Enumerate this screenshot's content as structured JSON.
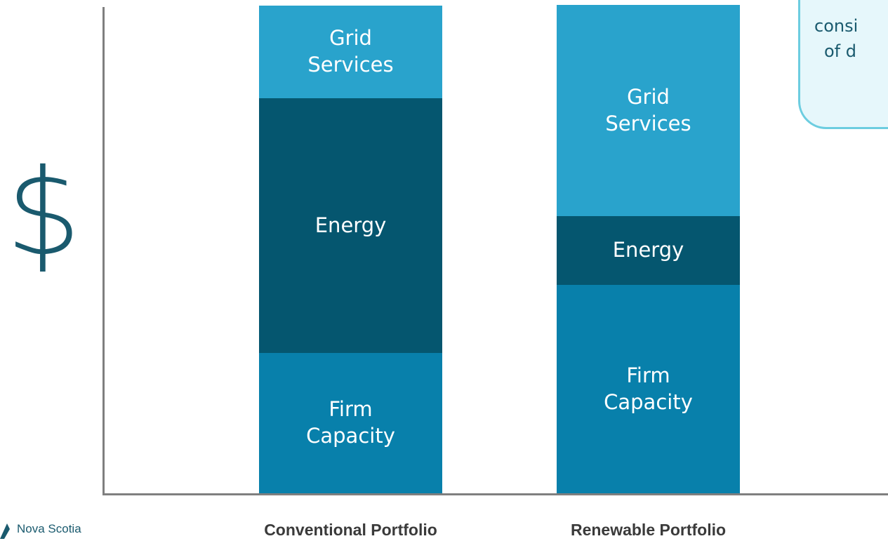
{
  "chart_data": {
    "type": "stacked-bar",
    "y_label": "$",
    "categories": [
      "Conventional Portfolio",
      "Renewable Portfolio"
    ],
    "series": [
      {
        "name": "Firm Capacity",
        "color": "#0880ab",
        "values": [
          200,
          297
        ]
      },
      {
        "name": "Energy",
        "color": "#05566f",
        "values": [
          363,
          98
        ]
      },
      {
        "name": "Grid Services",
        "color": "#29a3cc",
        "values": [
          132,
          301
        ]
      }
    ],
    "ylim": [
      0,
      700
    ]
  },
  "callout": {
    "lines": [
      "consi",
      "of d"
    ]
  },
  "logo": {
    "text": "Nova Scotia"
  }
}
